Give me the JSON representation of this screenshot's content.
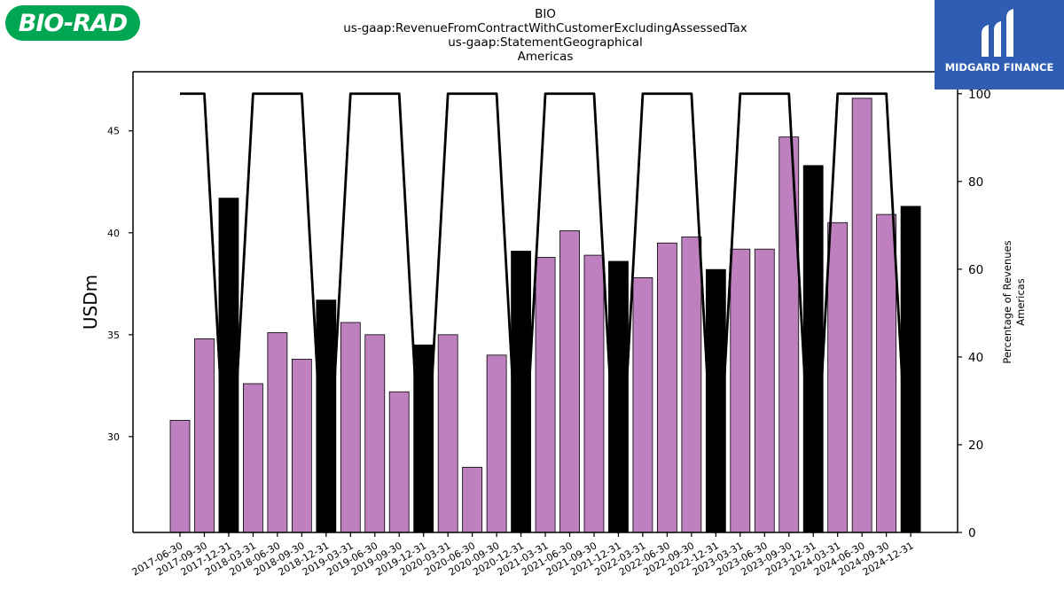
{
  "header": {
    "title_lines": [
      "BIO",
      "us-gaap:RevenueFromContractWithCustomerExcludingAssessedTax",
      "us-gaap:StatementGeographical",
      "Americas"
    ]
  },
  "logos": {
    "left_text": "BIO-RAD",
    "right_text": "MIDGARD FINANCE",
    "left_color": "#00a651",
    "right_color": "#2f5db3"
  },
  "chart_data": {
    "type": "bar",
    "categories": [
      "2017-06-30",
      "2017-09-30",
      "2017-12-31",
      "2018-03-31",
      "2018-06-30",
      "2018-09-30",
      "2018-12-31",
      "2019-03-31",
      "2019-06-30",
      "2019-09-30",
      "2019-12-31",
      "2020-03-31",
      "2020-06-30",
      "2020-09-30",
      "2020-12-31",
      "2021-03-31",
      "2021-06-30",
      "2021-09-30",
      "2021-12-31",
      "2022-03-31",
      "2022-06-30",
      "2022-09-30",
      "2022-12-31",
      "2023-03-31",
      "2023-06-30",
      "2023-09-30",
      "2023-12-31",
      "2024-03-31",
      "2024-06-30",
      "2024-09-30",
      "2024-12-31"
    ],
    "values": [
      30.8,
      34.8,
      41.7,
      32.6,
      35.1,
      33.8,
      36.7,
      35.6,
      35.0,
      32.2,
      34.5,
      35.0,
      28.5,
      34.0,
      39.1,
      38.8,
      40.1,
      38.9,
      38.6,
      37.8,
      39.5,
      39.8,
      38.2,
      39.2,
      39.2,
      44.7,
      43.3,
      40.5,
      46.6,
      40.9,
      41.3
    ],
    "highlight": [
      false,
      false,
      true,
      false,
      false,
      false,
      true,
      false,
      false,
      false,
      true,
      false,
      false,
      false,
      true,
      false,
      false,
      false,
      true,
      false,
      false,
      false,
      true,
      false,
      false,
      false,
      true,
      false,
      false,
      false,
      true
    ],
    "percentage_line": [
      100,
      100,
      0,
      100,
      100,
      100,
      0,
      100,
      100,
      100,
      0,
      100,
      100,
      100,
      0,
      100,
      100,
      100,
      0,
      100,
      100,
      100,
      0,
      100,
      100,
      100,
      0,
      100,
      100,
      100,
      0
    ],
    "ylabel": "USDm",
    "ylim": [
      25.3,
      47.9
    ],
    "yticks": [
      30,
      35,
      40,
      45
    ],
    "ylabel_right": [
      "Percentage of Revenues",
      "Americas"
    ],
    "ylim_right": [
      0,
      105
    ],
    "yticks_right": [
      0,
      20,
      40,
      60,
      80,
      100
    ],
    "colors": {
      "bar": "#bf80bf",
      "highlight": "#000000",
      "line": "#000000"
    },
    "grid": false
  }
}
